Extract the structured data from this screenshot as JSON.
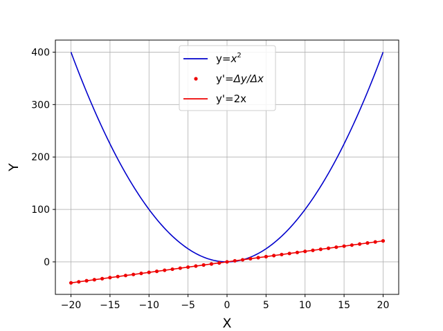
{
  "chart_data": {
    "type": "line",
    "xlabel": "X",
    "ylabel": "Y",
    "xlim": [
      -22,
      22
    ],
    "ylim": [
      -62,
      423
    ],
    "xticks": [
      -20,
      -15,
      -10,
      -5,
      0,
      5,
      10,
      15,
      20
    ],
    "xtick_labels": [
      "−20",
      "−15",
      "−10",
      "−5",
      "0",
      "5",
      "10",
      "15",
      "20"
    ],
    "yticks": [
      0,
      100,
      200,
      300,
      400
    ],
    "ytick_labels": [
      "0",
      "100",
      "200",
      "300",
      "400"
    ],
    "grid": true,
    "legend_position": "upper center",
    "series": [
      {
        "name": "y=x^2",
        "legend_label": {
          "prefix": "y=",
          "math": "x",
          "sup": "2"
        },
        "style": "line",
        "color": "#0000cc",
        "x": [
          -20,
          -18,
          -16,
          -14,
          -12,
          -10,
          -8,
          -6,
          -4,
          -2,
          0,
          2,
          4,
          6,
          8,
          10,
          12,
          14,
          16,
          18,
          20
        ],
        "y": [
          400,
          324,
          256,
          196,
          144,
          100,
          64,
          36,
          16,
          4,
          0,
          4,
          16,
          36,
          64,
          100,
          144,
          196,
          256,
          324,
          400
        ]
      },
      {
        "name": "y'=Δy/Δx",
        "legend_label": {
          "prefix": "y'=",
          "math": "Δy/Δx"
        },
        "style": "points",
        "color": "#ee0000",
        "x": [
          -20,
          -19,
          -18,
          -17,
          -16,
          -15,
          -14,
          -13,
          -12,
          -11,
          -10,
          -9,
          -8,
          -7,
          -6,
          -5,
          -4,
          -3,
          -2,
          -1,
          0,
          1,
          2,
          3,
          4,
          5,
          6,
          7,
          8,
          9,
          10,
          11,
          12,
          13,
          14,
          15,
          16,
          17,
          18,
          19,
          20
        ],
        "y": [
          -40,
          -38,
          -36,
          -34,
          -32,
          -30,
          -28,
          -26,
          -24,
          -22,
          -20,
          -18,
          -16,
          -14,
          -12,
          -10,
          -8,
          -6,
          -4,
          -2,
          0,
          2,
          4,
          6,
          8,
          10,
          12,
          14,
          16,
          18,
          20,
          22,
          24,
          26,
          28,
          30,
          32,
          34,
          36,
          38,
          40
        ]
      },
      {
        "name": "y'=2x",
        "legend_label": {
          "prefix": "y'=2x"
        },
        "style": "line",
        "color": "#ee0000",
        "x": [
          -20,
          20
        ],
        "y": [
          -40,
          40
        ]
      }
    ]
  }
}
